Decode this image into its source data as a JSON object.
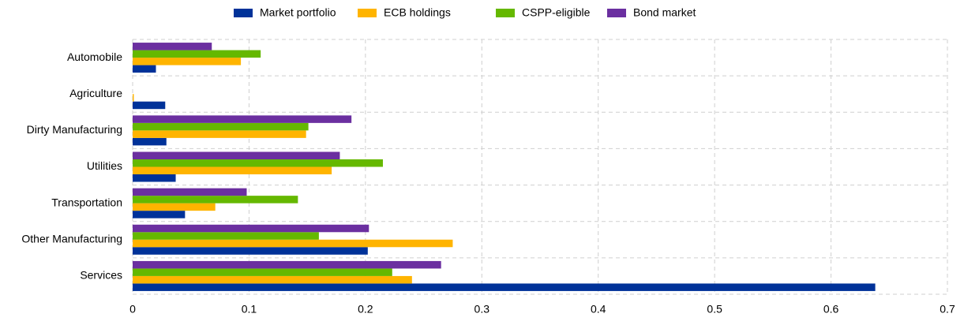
{
  "chart_data": {
    "type": "hbar",
    "categories": [
      "Automobile",
      "Agriculture",
      "Dirty Manufacturing",
      "Utilities",
      "Transportation",
      "Other Manufacturing",
      "Services"
    ],
    "series": [
      {
        "name": "Market portfolio",
        "color": "#003299",
        "values": [
          0.02,
          0.028,
          0.029,
          0.037,
          0.045,
          0.202,
          0.638
        ]
      },
      {
        "name": "ECB holdings",
        "color": "#ffb400",
        "values": [
          0.093,
          0.001,
          0.149,
          0.171,
          0.071,
          0.275,
          0.24
        ]
      },
      {
        "name": "CSPP-eligible",
        "color": "#65b800",
        "values": [
          0.11,
          0,
          0.151,
          0.215,
          0.142,
          0.16,
          0.223
        ]
      },
      {
        "name": "Bond market",
        "color": "#6b2fa0",
        "values": [
          0.068,
          0,
          0.188,
          0.178,
          0.098,
          0.203,
          0.265
        ]
      }
    ],
    "xlim": [
      0,
      0.7
    ],
    "xticks": [
      0,
      0.1,
      0.2,
      0.3,
      0.4,
      0.5,
      0.6,
      0.7
    ],
    "grid": true,
    "legend": "top"
  }
}
